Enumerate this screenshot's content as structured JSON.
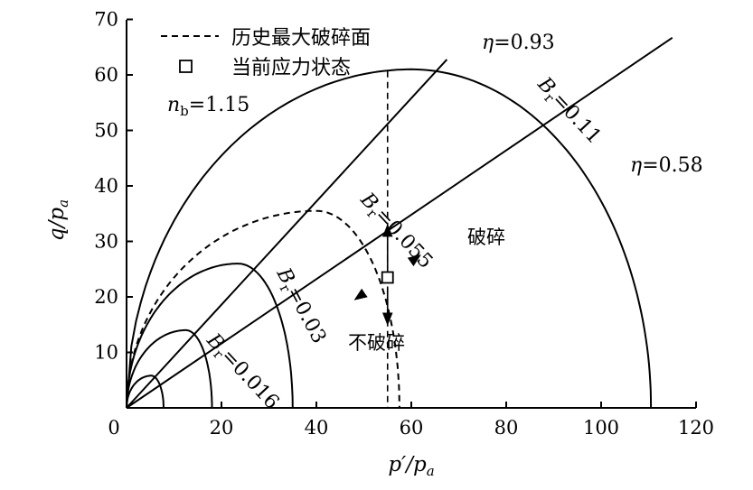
{
  "chart_data": {
    "type": "line",
    "xlabel_main": "p′/p",
    "xlabel_sub": "a",
    "ylabel_main": "q/p",
    "ylabel_sub": "a",
    "xlim": [
      0,
      120
    ],
    "ylim": [
      0,
      70
    ],
    "xticks": [
      "0",
      "20",
      "40",
      "60",
      "80",
      "100",
      "120"
    ],
    "yticks": [
      "10",
      "20",
      "30",
      "40",
      "50",
      "60",
      "70"
    ],
    "legend": {
      "items": [
        {
          "label": "历史最大破碎面",
          "style": "dashed-line"
        },
        {
          "label": "当前应力状态",
          "style": "open-square"
        }
      ]
    },
    "annotations": {
      "nb_label_main": "n",
      "nb_label_sub": "b",
      "nb_label_value": "=1.15",
      "eta_high_main": "η",
      "eta_high_value": "=0.93",
      "eta_low_main": "η",
      "eta_low_value": "=0.58",
      "br_main": "B",
      "br_sub": "r",
      "br_016": "=0.016",
      "br_03": "=0.03",
      "br_055": "=0.055",
      "br_11": "=0.11",
      "crush": "破碎",
      "no_crush": "不破碎"
    },
    "lines": [
      {
        "name": "η=0.93",
        "slope": 0.93,
        "x": [
          0,
          67.5
        ]
      },
      {
        "name": "η=0.58",
        "slope": 0.58,
        "x": [
          0,
          115
        ]
      }
    ],
    "yield_surfaces": [
      {
        "name": "Br=0.016",
        "x_peak": 5.2,
        "q_peak": 5.8,
        "p_end": 7.8
      },
      {
        "name": "Br=0.03",
        "x_peak": 12.5,
        "q_peak": 14.0,
        "p_end": 18.0
      },
      {
        "name": "Br=0.03",
        "x_peak": 23.5,
        "q_peak": 26.0,
        "p_end": 35.0
      },
      {
        "name": "Br=0.055",
        "x_peak": 40.0,
        "q_peak": 35.5,
        "p_end": 57.5,
        "dashed": true
      },
      {
        "name": "Br=0.11",
        "x_peak": 60.0,
        "q_peak": 61.0,
        "p_end": 110.5
      }
    ],
    "current_state": {
      "x": 55.0,
      "y": 23.5
    },
    "vertical_dashed_x": 55.0,
    "vertical_dashed_y_top": 60.7
  }
}
